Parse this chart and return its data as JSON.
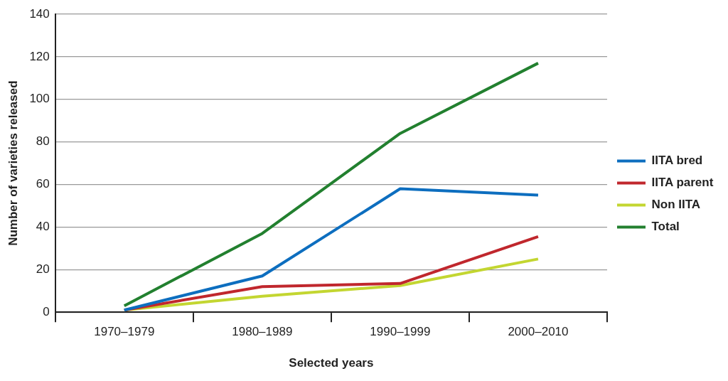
{
  "chart_data": {
    "type": "line",
    "xlabel": "Selected years",
    "ylabel": "Number of varieties released",
    "categories": [
      "1970–1979",
      "1980–1989",
      "1990–1999",
      "2000–2010"
    ],
    "series": [
      {
        "name": "IITA bred",
        "color": "#0d6ebf",
        "values": [
          1,
          17,
          58,
          55
        ]
      },
      {
        "name": "IITA parent",
        "color": "#c0272d",
        "values": [
          1,
          12,
          13.5,
          35.5
        ]
      },
      {
        "name": "Non IITA",
        "color": "#c3d631",
        "values": [
          1,
          7.5,
          12.5,
          25
        ]
      },
      {
        "name": "Total",
        "color": "#22802f",
        "values": [
          3,
          37,
          84,
          117
        ]
      }
    ],
    "ylim": [
      0,
      140
    ],
    "yticks": [
      0,
      20,
      40,
      60,
      80,
      100,
      120,
      140
    ],
    "grid": "y",
    "legend": "right",
    "marker": "none",
    "line_style": "solid"
  }
}
